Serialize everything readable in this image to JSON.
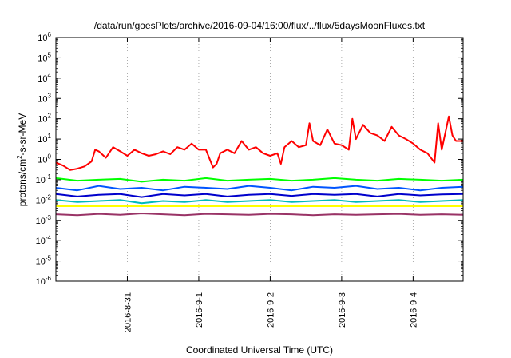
{
  "chart_data": {
    "type": "line",
    "title": "/data/run/goesPlots/archive/2016-09-04/16:00/flux/../flux/5daysMoonFluxes.txt",
    "xlabel": "Coordinated Universal Time (UTC)",
    "ylabel": {
      "main": "protons/cm",
      "sup": "2",
      "rest": "-s-sr-MeV"
    },
    "yscale": "log",
    "ylim": [
      1e-06,
      1000000.0
    ],
    "xlim": [
      0,
      5.7
    ],
    "grid": "dotted",
    "y_ticks": [
      {
        "value": 1e-06,
        "base": "10",
        "exp": "-6"
      },
      {
        "value": 1e-05,
        "base": "10",
        "exp": "-5"
      },
      {
        "value": 0.0001,
        "base": "10",
        "exp": "-4"
      },
      {
        "value": 0.001,
        "base": "10",
        "exp": "-3"
      },
      {
        "value": 0.01,
        "base": "10",
        "exp": "-2"
      },
      {
        "value": 0.1,
        "base": "10",
        "exp": "-1"
      },
      {
        "value": 1,
        "base": "10",
        "exp": "0"
      },
      {
        "value": 10,
        "base": "10",
        "exp": "1"
      },
      {
        "value": 100,
        "base": "10",
        "exp": "2"
      },
      {
        "value": 1000.0,
        "base": "10",
        "exp": "3"
      },
      {
        "value": 10000.0,
        "base": "10",
        "exp": "4"
      },
      {
        "value": 100000.0,
        "base": "10",
        "exp": "5"
      },
      {
        "value": 1000000.0,
        "base": "10",
        "exp": "6"
      }
    ],
    "x_ticks": [
      {
        "value": 1,
        "label": "2016-8-31"
      },
      {
        "value": 2,
        "label": "2016-9-1"
      },
      {
        "value": 3,
        "label": "2016-9-2"
      },
      {
        "value": 4,
        "label": "2016-9-3"
      },
      {
        "value": 5,
        "label": "2016-9-4"
      }
    ],
    "series": [
      {
        "color": "#ff0000",
        "x": [
          0.0,
          0.1,
          0.2,
          0.3,
          0.4,
          0.5,
          0.55,
          0.6,
          0.7,
          0.8,
          0.9,
          1.0,
          1.1,
          1.2,
          1.3,
          1.4,
          1.5,
          1.6,
          1.7,
          1.8,
          1.9,
          2.0,
          2.1,
          2.2,
          2.25,
          2.3,
          2.4,
          2.5,
          2.6,
          2.7,
          2.8,
          2.9,
          3.0,
          3.1,
          3.15,
          3.2,
          3.3,
          3.4,
          3.5,
          3.55,
          3.6,
          3.7,
          3.8,
          3.9,
          4.0,
          4.1,
          4.15,
          4.2,
          4.3,
          4.4,
          4.5,
          4.6,
          4.7,
          4.8,
          4.9,
          5.0,
          5.1,
          5.2,
          5.3,
          5.35,
          5.4,
          5.5,
          5.55,
          5.6,
          5.7
        ],
        "y": [
          0.7,
          0.5,
          0.3,
          0.35,
          0.45,
          0.8,
          3.0,
          2.5,
          1.2,
          4.0,
          2.5,
          1.5,
          3.0,
          2.0,
          1.5,
          1.8,
          2.5,
          1.8,
          4.0,
          3.0,
          6.0,
          3.0,
          3.0,
          0.4,
          0.6,
          2.0,
          3.0,
          2.0,
          8.0,
          3.0,
          4.0,
          2.0,
          1.5,
          2.0,
          0.6,
          4.0,
          8.0,
          4.0,
          5.0,
          60.0,
          8.0,
          5.0,
          30.0,
          6.0,
          5.0,
          3.0,
          100.0,
          10.0,
          50.0,
          20.0,
          15.0,
          8.0,
          40.0,
          15.0,
          10.0,
          6.0,
          3.0,
          2.0,
          0.7,
          60.0,
          3.0,
          130.0,
          15.0,
          8.0,
          8.0
        ]
      },
      {
        "color": "#00ff00",
        "x": [
          0.0,
          0.3,
          0.6,
          0.9,
          1.2,
          1.5,
          1.8,
          2.1,
          2.4,
          2.7,
          3.0,
          3.3,
          3.6,
          3.9,
          4.2,
          4.5,
          4.8,
          5.1,
          5.4,
          5.7
        ],
        "y": [
          0.12,
          0.09,
          0.1,
          0.11,
          0.08,
          0.1,
          0.09,
          0.12,
          0.09,
          0.1,
          0.11,
          0.09,
          0.1,
          0.12,
          0.1,
          0.09,
          0.11,
          0.1,
          0.09,
          0.1
        ]
      },
      {
        "color": "#0055ff",
        "x": [
          0.0,
          0.3,
          0.6,
          0.9,
          1.2,
          1.5,
          1.8,
          2.1,
          2.4,
          2.7,
          3.0,
          3.3,
          3.6,
          3.9,
          4.2,
          4.5,
          4.8,
          5.1,
          5.4,
          5.7
        ],
        "y": [
          0.04,
          0.03,
          0.05,
          0.035,
          0.04,
          0.03,
          0.045,
          0.04,
          0.035,
          0.05,
          0.04,
          0.03,
          0.045,
          0.04,
          0.05,
          0.035,
          0.04,
          0.03,
          0.04,
          0.045
        ]
      },
      {
        "color": "#0000cc",
        "x": [
          0.0,
          0.3,
          0.6,
          0.9,
          1.2,
          1.5,
          1.8,
          2.1,
          2.4,
          2.7,
          3.0,
          3.3,
          3.6,
          3.9,
          4.2,
          4.5,
          4.8,
          5.1,
          5.4,
          5.7
        ],
        "y": [
          0.02,
          0.015,
          0.018,
          0.02,
          0.014,
          0.02,
          0.017,
          0.02,
          0.015,
          0.018,
          0.02,
          0.016,
          0.02,
          0.018,
          0.02,
          0.015,
          0.02,
          0.017,
          0.019,
          0.02
        ]
      },
      {
        "color": "#00bbbb",
        "x": [
          0.0,
          0.3,
          0.6,
          0.9,
          1.2,
          1.5,
          1.8,
          2.1,
          2.4,
          2.7,
          3.0,
          3.3,
          3.6,
          3.9,
          4.2,
          4.5,
          4.8,
          5.1,
          5.4,
          5.7
        ],
        "y": [
          0.01,
          0.008,
          0.009,
          0.01,
          0.007,
          0.009,
          0.008,
          0.01,
          0.008,
          0.009,
          0.01,
          0.008,
          0.009,
          0.01,
          0.008,
          0.009,
          0.01,
          0.008,
          0.009,
          0.01
        ]
      },
      {
        "color": "#ffff00",
        "x": [
          0.0,
          5.7
        ],
        "y": [
          0.005,
          0.005
        ]
      },
      {
        "color": "#993366",
        "x": [
          0.0,
          0.3,
          0.6,
          0.9,
          1.2,
          1.5,
          1.8,
          2.1,
          2.4,
          2.7,
          3.0,
          3.3,
          3.6,
          3.9,
          4.2,
          4.5,
          4.8,
          5.1,
          5.4,
          5.7
        ],
        "y": [
          0.002,
          0.0018,
          0.0021,
          0.0019,
          0.0022,
          0.002,
          0.0018,
          0.0021,
          0.002,
          0.0019,
          0.0021,
          0.002,
          0.0018,
          0.002,
          0.0019,
          0.002,
          0.0021,
          0.0019,
          0.002,
          0.0019
        ]
      }
    ]
  }
}
